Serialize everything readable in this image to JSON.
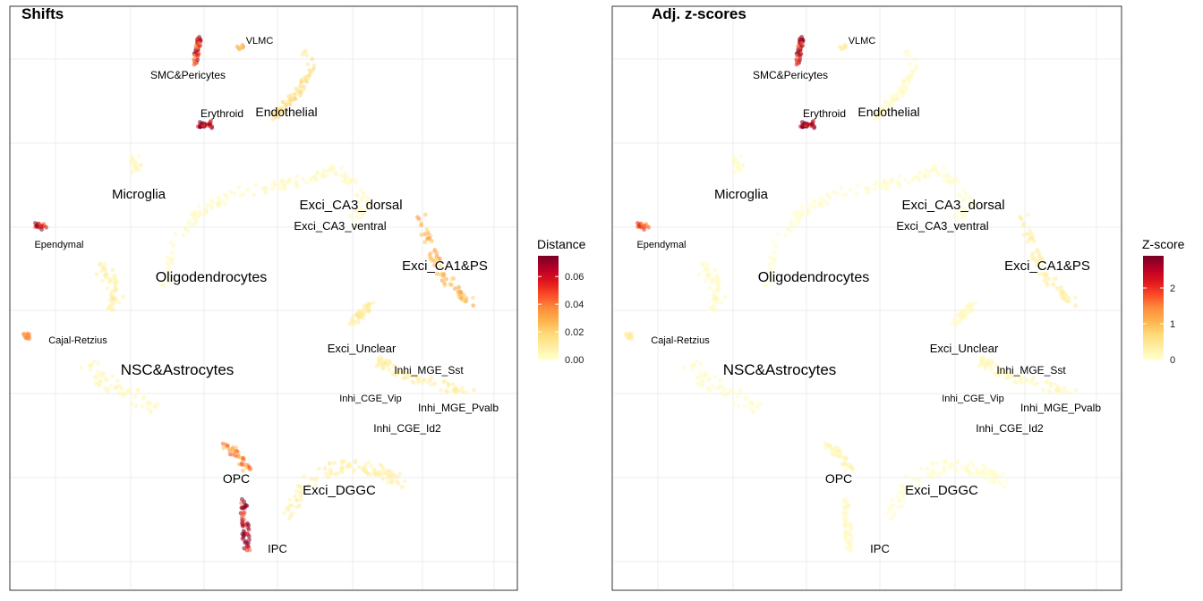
{
  "chart_data": [
    {
      "type": "scatter",
      "title": "Shifts",
      "grid": true,
      "legend": {
        "title": "Distance",
        "position": "right",
        "type": "colorbar",
        "range": [
          0,
          0.075
        ],
        "ticks": [
          "0.00",
          "0.02",
          "0.04",
          "0.06"
        ],
        "tick_values": [
          0,
          0.02,
          0.04,
          0.06
        ],
        "colors": [
          "#ffffcc",
          "#ffeda0",
          "#fed976",
          "#feb24c",
          "#fd8d3c",
          "#fc4e2a",
          "#e31a1c",
          "#bd0026",
          "#800026"
        ]
      },
      "labels": [
        {
          "text": "VLMC",
          "key": "vlmc"
        },
        {
          "text": "SMC&Pericytes",
          "key": "smc"
        },
        {
          "text": "Erythroid",
          "key": "erythroid"
        },
        {
          "text": "Endothelial",
          "key": "endothelial"
        },
        {
          "text": "Microglia",
          "key": "microglia"
        },
        {
          "text": "Exci_CA3_dorsal",
          "key": "ca3d"
        },
        {
          "text": "Exci_CA3_ventral",
          "key": "ca3v"
        },
        {
          "text": "Ependymal",
          "key": "ependymal"
        },
        {
          "text": "Exci_CA1&PS",
          "key": "ca1"
        },
        {
          "text": "Oligodendrocytes",
          "key": "oligo"
        },
        {
          "text": "Cajal-Retzius",
          "key": "cajal"
        },
        {
          "text": "Exci_Unclear",
          "key": "unclear"
        },
        {
          "text": "NSC&Astrocytes",
          "key": "nsc"
        },
        {
          "text": "Inhi_MGE_Sst",
          "key": "sst"
        },
        {
          "text": "Inhi_CGE_Vip",
          "key": "vip"
        },
        {
          "text": "Inhi_MGE_Pvalb",
          "key": "pvalb"
        },
        {
          "text": "Inhi_CGE_Id2",
          "key": "id2"
        },
        {
          "text": "OPC",
          "key": "opc"
        },
        {
          "text": "Exci_DGGC",
          "key": "dggc"
        },
        {
          "text": "IPC",
          "key": "ipc"
        }
      ],
      "series": [
        {
          "cluster": "vlmc",
          "value": 0.03
        },
        {
          "cluster": "smc",
          "value": 0.055
        },
        {
          "cluster": "erythroid",
          "value": 0.07
        },
        {
          "cluster": "endothelial",
          "value": 0.015
        },
        {
          "cluster": "microglia",
          "value": 0.004
        },
        {
          "cluster": "ca3",
          "value": 0.003
        },
        {
          "cluster": "ependymal",
          "value": 0.055
        },
        {
          "cluster": "ca1",
          "value": 0.025
        },
        {
          "cluster": "oligo",
          "value": 0.008
        },
        {
          "cluster": "cajal",
          "value": 0.03
        },
        {
          "cluster": "unclear",
          "value": 0.01
        },
        {
          "cluster": "nsc",
          "value": 0.004
        },
        {
          "cluster": "interneurons",
          "value": 0.008
        },
        {
          "cluster": "opc",
          "value": 0.035
        },
        {
          "cluster": "dggc",
          "value": 0.008
        },
        {
          "cluster": "ipc",
          "value": 0.07
        }
      ]
    },
    {
      "type": "scatter",
      "title": "Adj. z-scores",
      "grid": true,
      "legend": {
        "title": "Z-score",
        "position": "right",
        "type": "colorbar",
        "range": [
          0,
          2.9
        ],
        "ticks": [
          "0",
          "1",
          "2"
        ],
        "tick_values": [
          0,
          1,
          2
        ],
        "colors": [
          "#ffffcc",
          "#ffeda0",
          "#fed976",
          "#feb24c",
          "#fd8d3c",
          "#fc4e2a",
          "#e31a1c",
          "#bd0026",
          "#800026"
        ]
      },
      "labels": [
        {
          "text": "VLMC",
          "key": "vlmc"
        },
        {
          "text": "SMC&Pericytes",
          "key": "smc"
        },
        {
          "text": "Erythroid",
          "key": "erythroid"
        },
        {
          "text": "Endothelial",
          "key": "endothelial"
        },
        {
          "text": "Microglia",
          "key": "microglia"
        },
        {
          "text": "Exci_CA3_dorsal",
          "key": "ca3d"
        },
        {
          "text": "Exci_CA3_ventral",
          "key": "ca3v"
        },
        {
          "text": "Ependymal",
          "key": "ependymal"
        },
        {
          "text": "Exci_CA1&PS",
          "key": "ca1"
        },
        {
          "text": "Oligodendrocytes",
          "key": "oligo"
        },
        {
          "text": "Cajal-Retzius",
          "key": "cajal"
        },
        {
          "text": "Exci_Unclear",
          "key": "unclear"
        },
        {
          "text": "NSC&Astrocytes",
          "key": "nsc"
        },
        {
          "text": "Inhi_MGE_Sst",
          "key": "sst"
        },
        {
          "text": "Inhi_CGE_Vip",
          "key": "vip"
        },
        {
          "text": "Inhi_MGE_Pvalb",
          "key": "pvalb"
        },
        {
          "text": "Inhi_CGE_Id2",
          "key": "id2"
        },
        {
          "text": "OPC",
          "key": "opc"
        },
        {
          "text": "Exci_DGGC",
          "key": "dggc"
        },
        {
          "text": "IPC",
          "key": "ipc"
        }
      ],
      "series": [
        {
          "cluster": "vlmc",
          "value": 0.4
        },
        {
          "cluster": "smc",
          "value": 2.5
        },
        {
          "cluster": "erythroid",
          "value": 2.8
        },
        {
          "cluster": "endothelial",
          "value": 0.1
        },
        {
          "cluster": "microglia",
          "value": 0.05
        },
        {
          "cluster": "ca3",
          "value": 0.05
        },
        {
          "cluster": "ependymal",
          "value": 1.6
        },
        {
          "cluster": "ca1",
          "value": 0.3
        },
        {
          "cluster": "oligo",
          "value": 0.1
        },
        {
          "cluster": "cajal",
          "value": 0.3
        },
        {
          "cluster": "unclear",
          "value": 0.1
        },
        {
          "cluster": "nsc",
          "value": 0.05
        },
        {
          "cluster": "interneurons",
          "value": 0.15
        },
        {
          "cluster": "opc",
          "value": 0.2
        },
        {
          "cluster": "dggc",
          "value": 0.05
        },
        {
          "cluster": "ipc",
          "value": 0.1
        }
      ]
    }
  ]
}
